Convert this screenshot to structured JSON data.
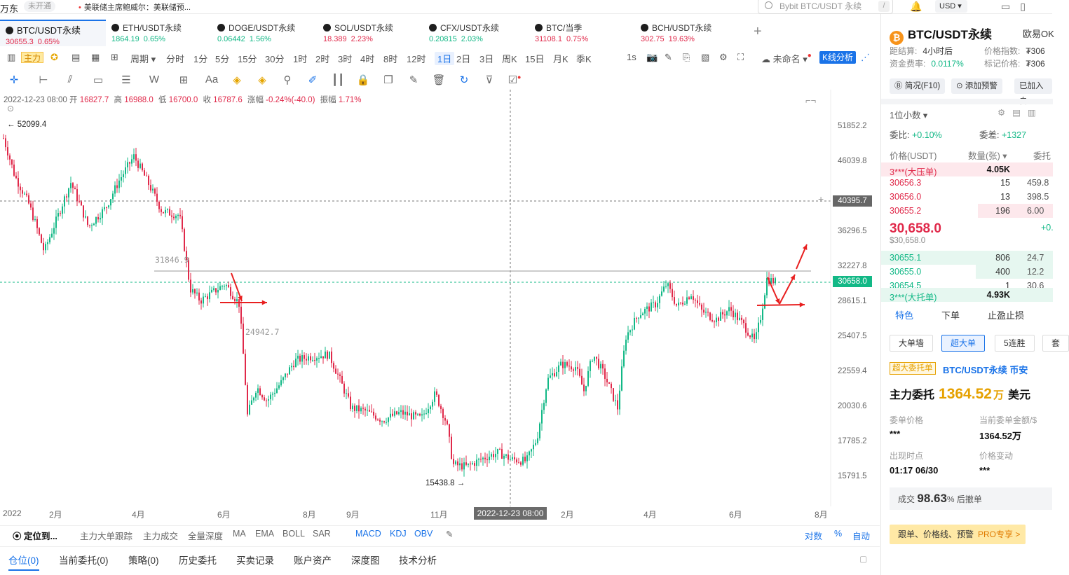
{
  "topbar": {
    "brand": "万东",
    "not_open": "未开通",
    "news": "美联储主席鲍威尔：美联储预...",
    "search_placeholder": "Bybit BTC/USDT 永续",
    "search_hotkey": "/",
    "currency": "USD"
  },
  "tickers": [
    {
      "name": "BTC/USDT永续",
      "price": "30655.3",
      "change": "0.65%",
      "dir": "up",
      "active": true
    },
    {
      "name": "ETH/USDT永续",
      "price": "1864.19",
      "change": "0.65%",
      "dir": "dn"
    },
    {
      "name": "DOGE/USDT永续",
      "price": "0.06442",
      "change": "1.56%",
      "dir": "dn"
    },
    {
      "name": "SOL/USDT永续",
      "price": "18.389",
      "change": "2.23%",
      "dir": "up"
    },
    {
      "name": "CFX/USDT永续",
      "price": "0.20815",
      "change": "2.03%",
      "dir": "dn"
    },
    {
      "name": "BTC/当季",
      "price": "31108.1",
      "change": "0.75%",
      "dir": "up"
    },
    {
      "name": "BCH/USDT永续",
      "price": "302.75",
      "change": "19.63%",
      "dir": "up"
    }
  ],
  "toolbar": {
    "zhuli": "主力",
    "period_label": "周期",
    "periods": [
      "分时",
      "1分",
      "5分",
      "15分",
      "30分",
      "1时",
      "2时",
      "3时",
      "4时",
      "8时",
      "12时",
      "1日",
      "2日",
      "3日",
      "周K",
      "15日",
      "月K",
      "季K"
    ],
    "selected_period": "1日",
    "interval": "1s",
    "unnamed": "未命名",
    "k_analysis": "K线分析"
  },
  "ohlc": {
    "date": "2022-12-23 08:00",
    "open_label": "开",
    "open": "16827.7",
    "high_label": "高",
    "high": "16988.0",
    "low_label": "低",
    "low": "16700.0",
    "close_label": "收",
    "close": "16787.6",
    "change_label": "涨幅",
    "change": "-0.24%(-40.0)",
    "amp_label": "振幅",
    "amp": "1.71%"
  },
  "chart_data": {
    "type": "candlestick",
    "y_ticks": [
      "51852.2",
      "46039.8",
      "40395.7",
      "36296.5",
      "32227.8",
      "30658.0",
      "28615.1",
      "25407.5",
      "22559.4",
      "20030.6",
      "17785.2",
      "15791.5"
    ],
    "x_ticks": [
      "2022",
      "2月",
      "4月",
      "6月",
      "8月",
      "9月",
      "11月",
      "2022-12-23 08:00",
      "2月",
      "4月",
      "6月",
      "8月"
    ],
    "crosshair_price": "40395.7",
    "last_price": "30658.0",
    "high_label": "52099.4",
    "low_label": "15438.8",
    "level_1": "31846.9",
    "level_2": "24942.7",
    "colors": {
      "up": "#12b886",
      "down": "#e0294a",
      "annotation": "#e82020"
    }
  },
  "indicators": {
    "locate": "定位到...",
    "items": [
      "主力大单跟踪",
      "主力成交",
      "全量深度",
      "MA",
      "EMA",
      "BOLL",
      "SAR"
    ],
    "sub_items": [
      "MACD",
      "KDJ",
      "OBV"
    ],
    "right": [
      "对数",
      "%",
      "自动"
    ]
  },
  "bottom_tabs": [
    "仓位(0)",
    "当前委托(0)",
    "策略(0)",
    "历史委托",
    "买卖记录",
    "账户资产",
    "深度图",
    "技术分析"
  ],
  "right_panel": {
    "title": "BTC/USDT永续",
    "exchange": "欧易OK",
    "settle_label": "距结算:",
    "settle": "4小时后",
    "funding_label": "资金费率:",
    "funding": "0.0117%",
    "index_label": "价格指数:",
    "index": "₮306",
    "mark_label": "标记价格:",
    "mark": "₮306",
    "buttons": [
      "简况(F10)",
      "添加预警",
      "已加入自"
    ],
    "decimals": "1位小数",
    "ratio_label": "委比:",
    "ratio": "+0.10%",
    "diff_label": "委差:",
    "diff": "+1327",
    "col_price": "价格(USDT)",
    "col_qty": "数量(张)",
    "col_total": "委托",
    "big_ask_label": "3***(大压单)",
    "big_ask_qty": "4.05K",
    "asks": [
      {
        "p": "30656.3",
        "q": "15",
        "t": "459.8"
      },
      {
        "p": "30656.0",
        "q": "13",
        "t": "398.5"
      },
      {
        "p": "30655.2",
        "q": "196",
        "t": "6.00"
      }
    ],
    "last": "30,658.0",
    "last_usd": "$30,658.0",
    "last_chg": "+0.",
    "bids": [
      {
        "p": "30655.1",
        "q": "806",
        "t": "24.7"
      },
      {
        "p": "30655.0",
        "q": "400",
        "t": "12.2"
      },
      {
        "p": "30654.5",
        "q": "1",
        "t": "30.6"
      }
    ],
    "big_bid_label": "3***(大托单)",
    "big_bid_qty": "4.93K",
    "subtabs": [
      "特色",
      "下单",
      "止盈止损"
    ],
    "chips": [
      "大单墙",
      "超大单",
      "5连胜",
      "套"
    ],
    "big_order_tag": "超大委托单",
    "big_order_market": "BTC/USDT永续 币安",
    "main_label": "主力委托",
    "main_amount": "1364.52",
    "main_unit": "万",
    "main_cur": "美元",
    "k1": "委单价格",
    "v1": "***",
    "k2": "当前委单金额/$",
    "v2": "1364.52万",
    "k3": "出现时点",
    "v3": "01:17 06/30",
    "k4": "价格变动",
    "v4": "***",
    "deal_label": "成交",
    "deal_pct": "98.63",
    "deal_suffix": "% 后撤单",
    "pro_text": "跟单、价格线、预警",
    "pro_badge": "PRO专享 >"
  }
}
